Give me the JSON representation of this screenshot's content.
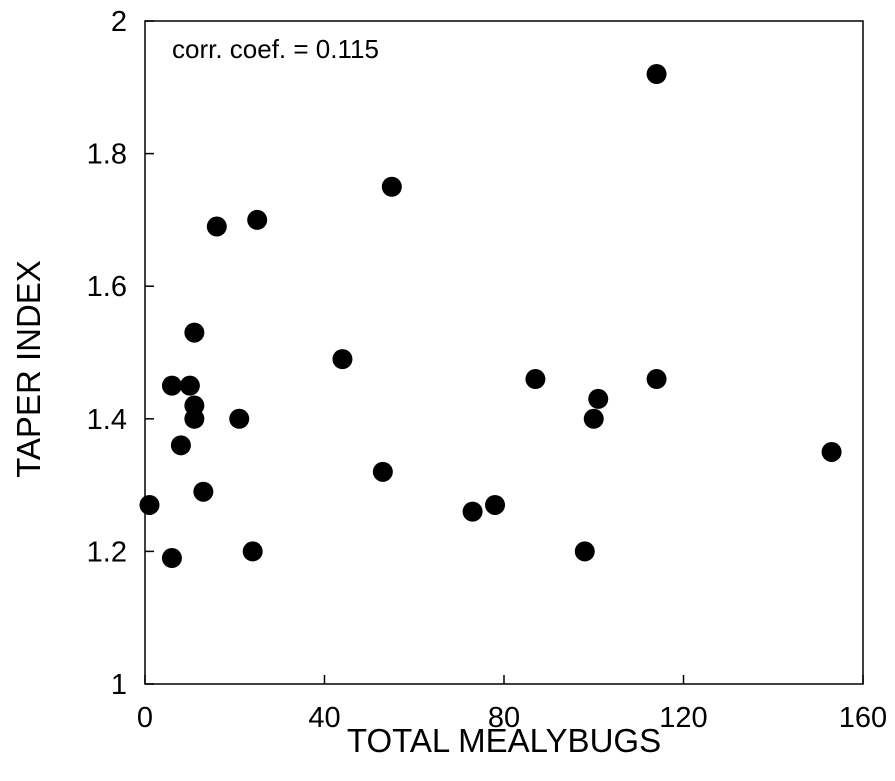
{
  "chart_data": {
    "type": "scatter",
    "xlabel": "TOTAL MEALYBUGS",
    "ylabel": "TAPER INDEX",
    "annotation": "corr. coef. = 0.115",
    "xlim": [
      0,
      160
    ],
    "ylim": [
      1,
      2
    ],
    "xticks": [
      0,
      40,
      80,
      120,
      160
    ],
    "yticks": [
      1,
      1.2,
      1.4,
      1.6,
      1.8,
      2
    ],
    "ytick_labels": [
      "1",
      "1.2",
      "1.4",
      "1.6",
      "1.8",
      "2"
    ],
    "grid": false,
    "marker_color": "#000000",
    "points": [
      {
        "x": 1,
        "y": 1.27
      },
      {
        "x": 6,
        "y": 1.19
      },
      {
        "x": 6,
        "y": 1.45
      },
      {
        "x": 8,
        "y": 1.36
      },
      {
        "x": 10,
        "y": 1.45
      },
      {
        "x": 11,
        "y": 1.53
      },
      {
        "x": 11,
        "y": 1.42
      },
      {
        "x": 11,
        "y": 1.4
      },
      {
        "x": 13,
        "y": 1.29
      },
      {
        "x": 16,
        "y": 1.69
      },
      {
        "x": 21,
        "y": 1.4
      },
      {
        "x": 24,
        "y": 1.2
      },
      {
        "x": 25,
        "y": 1.7
      },
      {
        "x": 44,
        "y": 1.49
      },
      {
        "x": 53,
        "y": 1.32
      },
      {
        "x": 55,
        "y": 1.75
      },
      {
        "x": 73,
        "y": 1.26
      },
      {
        "x": 78,
        "y": 1.27
      },
      {
        "x": 87,
        "y": 1.46
      },
      {
        "x": 98,
        "y": 1.2
      },
      {
        "x": 100,
        "y": 1.4
      },
      {
        "x": 101,
        "y": 1.43
      },
      {
        "x": 114,
        "y": 1.92
      },
      {
        "x": 114,
        "y": 1.46
      },
      {
        "x": 153,
        "y": 1.35
      }
    ]
  }
}
